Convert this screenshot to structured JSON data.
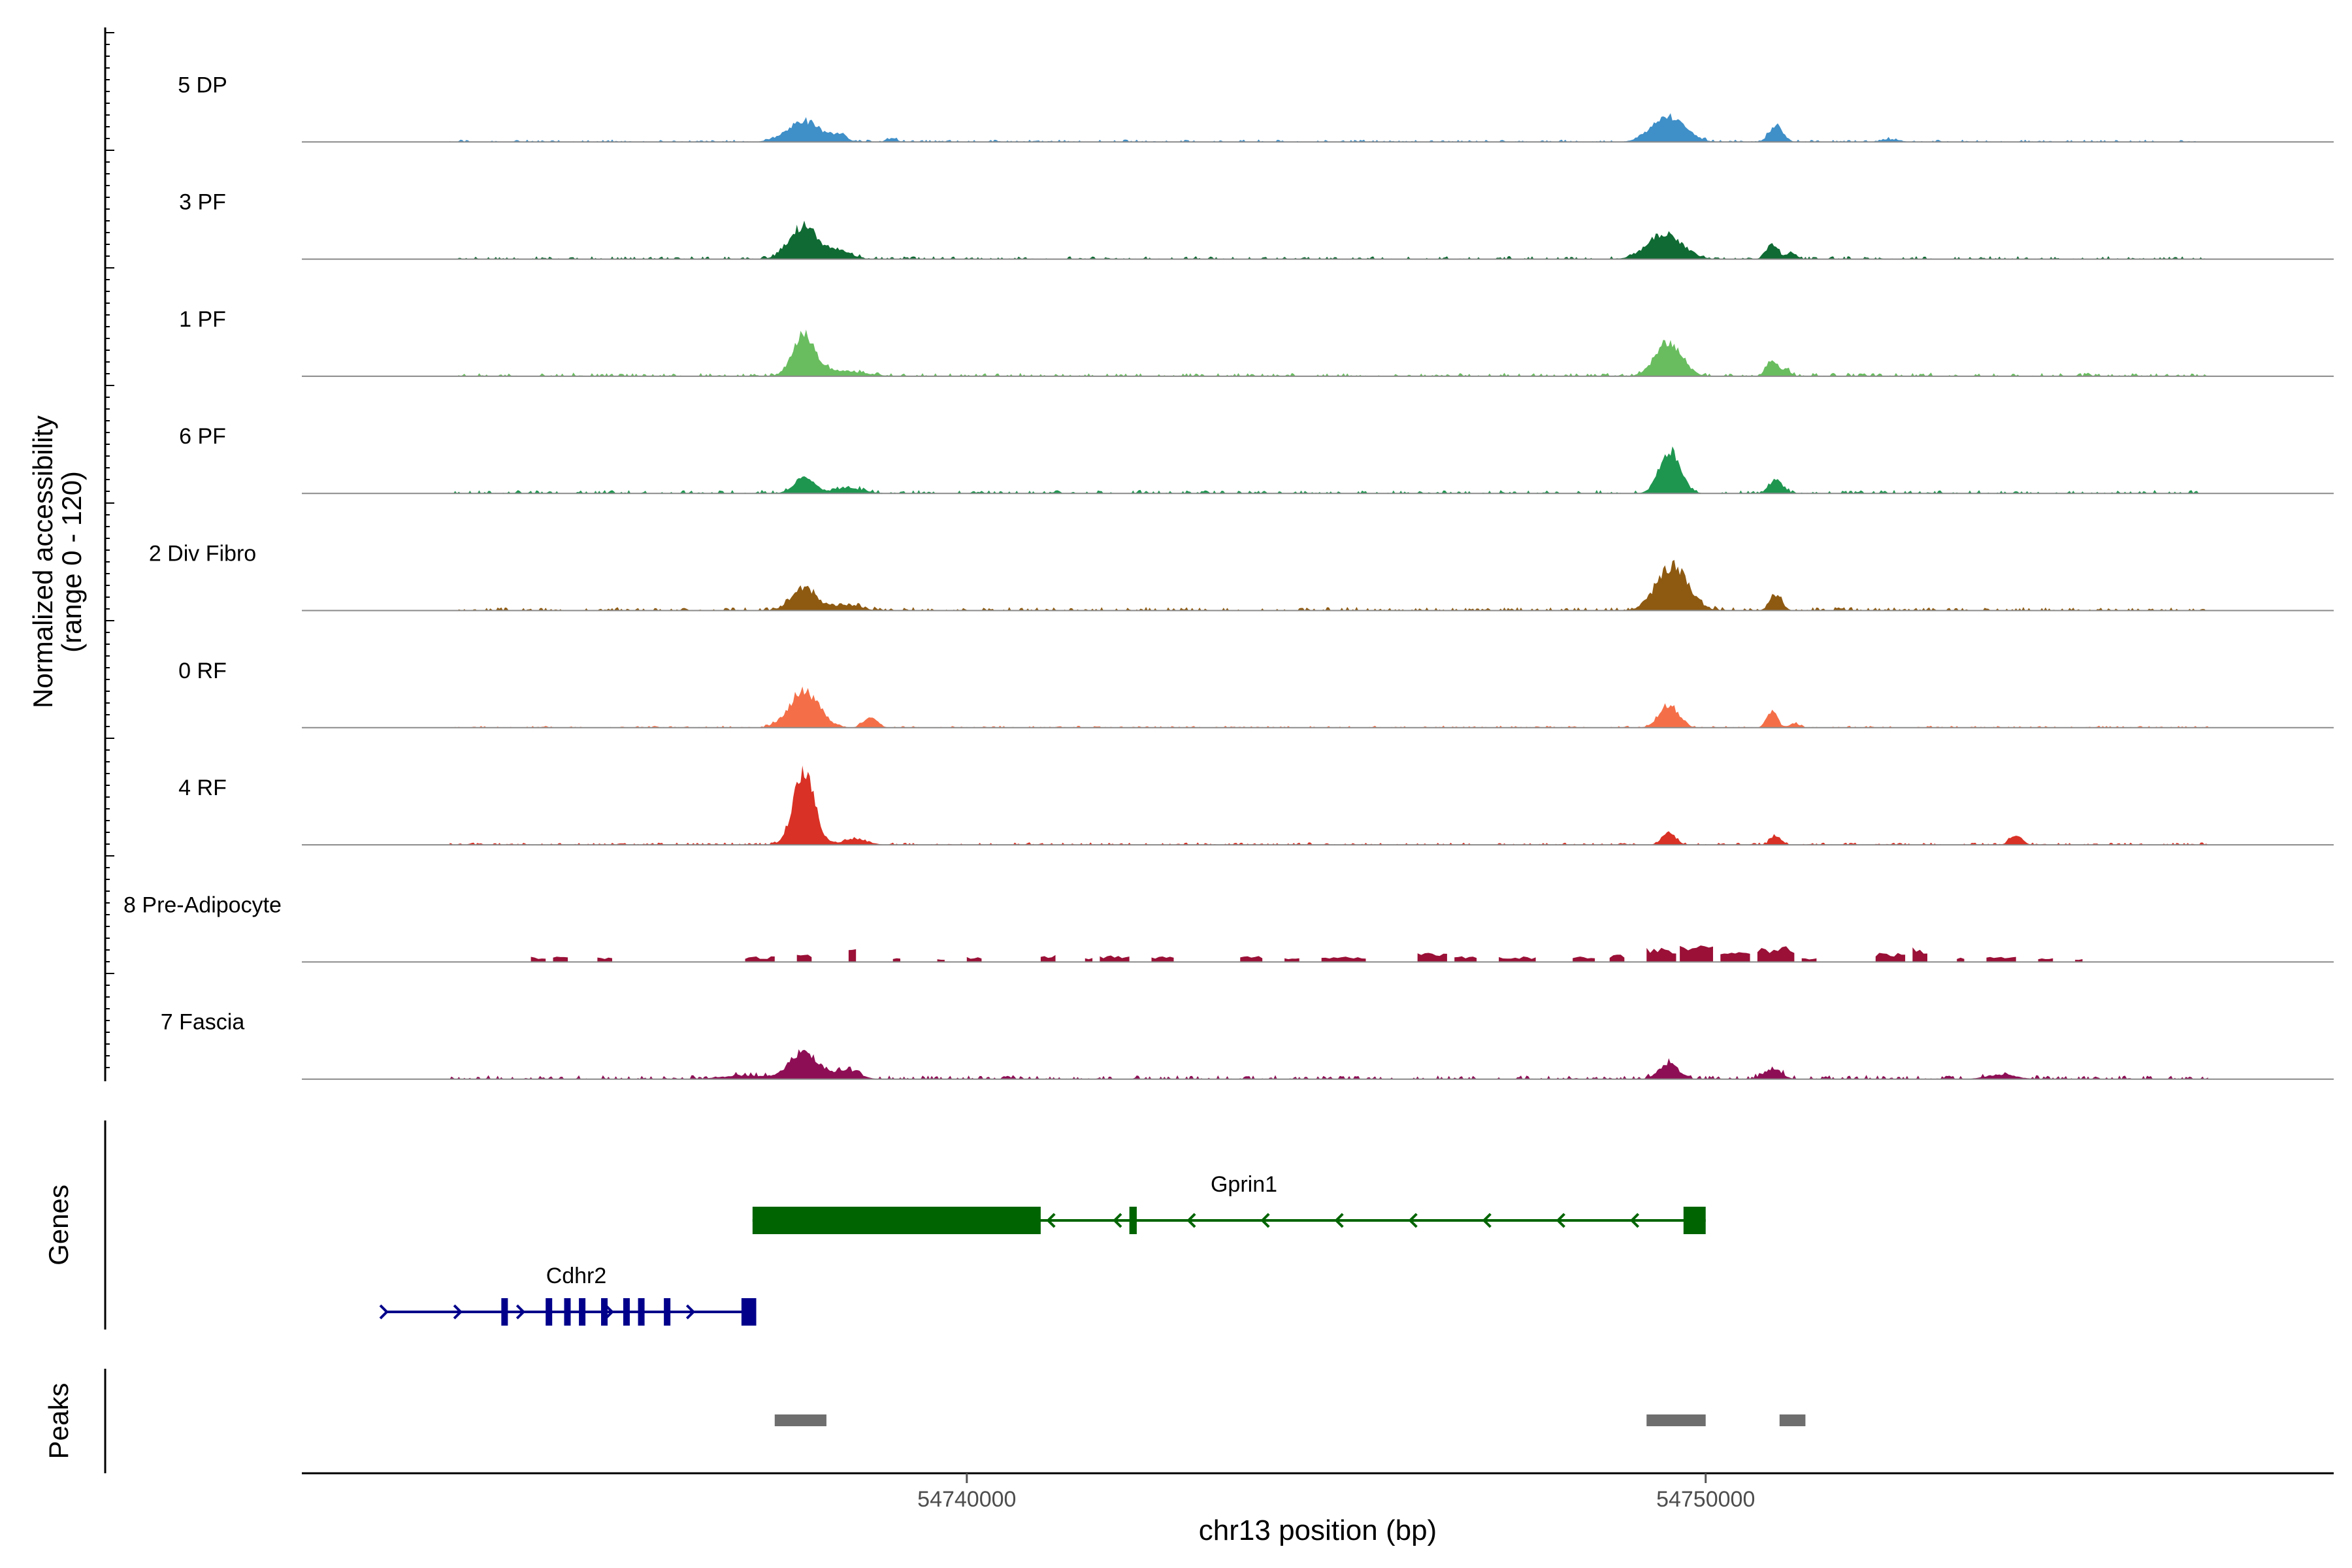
{
  "chart_data": {
    "type": "area",
    "chromosome": "chr13",
    "xlabel": "chr13 position (bp)",
    "ylabel_line1": "Normalized accessibility",
    "ylabel_line2": "(range 0 - 120)",
    "y_range": [
      0,
      120
    ],
    "x_range": [
      54731000,
      54758500
    ],
    "x_ticks": [
      {
        "value": 54740000,
        "label": "54740000"
      },
      {
        "value": 54750000,
        "label": "54750000"
      }
    ],
    "series": [
      {
        "name": "5 DP",
        "color": "#3F8FC8",
        "noise_seed": 5,
        "noise_level": 2.5,
        "peaks": [
          [
            54737800,
            22,
            230
          ],
          [
            54738300,
            7,
            80
          ],
          [
            54739000,
            4,
            60
          ],
          [
            54749500,
            28,
            220
          ],
          [
            54750950,
            17,
            90
          ],
          [
            54752500,
            3,
            120
          ]
        ]
      },
      {
        "name": "3 PF",
        "color": "#0F6B33",
        "noise_seed": 3,
        "noise_level": 3.0,
        "peaks": [
          [
            54737800,
            36,
            190
          ],
          [
            54738300,
            8,
            150
          ],
          [
            54749450,
            28,
            230
          ],
          [
            54750900,
            16,
            80
          ],
          [
            54751150,
            7,
            60
          ]
        ]
      },
      {
        "name": "1 PF",
        "color": "#69BD5F",
        "noise_seed": 1,
        "noise_level": 3.5,
        "peaks": [
          [
            54737800,
            42,
            150
          ],
          [
            54738300,
            6,
            300
          ],
          [
            54749500,
            36,
            180
          ],
          [
            54750900,
            16,
            80
          ],
          [
            54751100,
            6,
            60
          ]
        ]
      },
      {
        "name": "6 PF",
        "color": "#1F9650",
        "noise_seed": 6,
        "noise_level": 3.5,
        "peaks": [
          [
            54737800,
            17,
            140
          ],
          [
            54738400,
            6,
            200
          ],
          [
            54749520,
            46,
            140
          ],
          [
            54750950,
            15,
            90
          ]
        ]
      },
      {
        "name": "2 Div Fibro",
        "color": "#8E5A12",
        "noise_seed": 2,
        "noise_level": 3.5,
        "peaks": [
          [
            54737800,
            25,
            170
          ],
          [
            54738400,
            6,
            160
          ],
          [
            54749550,
            48,
            210
          ],
          [
            54750950,
            17,
            80
          ]
        ]
      },
      {
        "name": "0 RF",
        "color": "#F46F48",
        "noise_seed": 7,
        "noise_level": 2.0,
        "peaks": [
          [
            54737800,
            40,
            200
          ],
          [
            54738700,
            11,
            90
          ],
          [
            54749500,
            24,
            130
          ],
          [
            54750900,
            18,
            70
          ],
          [
            54751200,
            5,
            60
          ]
        ]
      },
      {
        "name": "4 RF",
        "color": "#D93125",
        "noise_seed": 4,
        "noise_level": 2.5,
        "peaks": [
          [
            54737800,
            80,
            140
          ],
          [
            54738500,
            6,
            160
          ],
          [
            54749500,
            14,
            90
          ],
          [
            54750950,
            10,
            70
          ],
          [
            54754200,
            11,
            80
          ]
        ]
      },
      {
        "name": "8 Pre-Adipocyte",
        "color": "#9A1037",
        "noise_seed": 8,
        "noise_level": 0,
        "blocks": [
          [
            54734100,
            54734300,
            6
          ],
          [
            54734400,
            54734600,
            6
          ],
          [
            54735000,
            54735200,
            5
          ],
          [
            54737000,
            54737400,
            6
          ],
          [
            54737700,
            54737900,
            8
          ],
          [
            54738400,
            54738500,
            14
          ],
          [
            54739000,
            54739100,
            5
          ],
          [
            54739600,
            54739700,
            4
          ],
          [
            54740000,
            54740200,
            6
          ],
          [
            54741000,
            54741200,
            8
          ],
          [
            54741600,
            54741700,
            5
          ],
          [
            54741800,
            54742200,
            7
          ],
          [
            54742500,
            54742800,
            6
          ],
          [
            54743700,
            54744000,
            7
          ],
          [
            54744300,
            54744500,
            5
          ],
          [
            54744800,
            54745400,
            6
          ],
          [
            54746100,
            54746500,
            11
          ],
          [
            54746600,
            54746900,
            7
          ],
          [
            54747200,
            54747700,
            6
          ],
          [
            54748200,
            54748500,
            6
          ],
          [
            54748700,
            54748900,
            8
          ],
          [
            54749200,
            54749600,
            16
          ],
          [
            54749650,
            54750100,
            18
          ],
          [
            54750200,
            54750600,
            11
          ],
          [
            54750700,
            54751200,
            17
          ],
          [
            54751300,
            54751500,
            5
          ],
          [
            54752300,
            54752700,
            10
          ],
          [
            54752800,
            54753000,
            16
          ],
          [
            54753400,
            54753500,
            5
          ],
          [
            54753800,
            54754200,
            6
          ],
          [
            54754500,
            54754700,
            4
          ],
          [
            54755000,
            54755100,
            4
          ]
        ]
      },
      {
        "name": "7 Fascia",
        "color": "#8E0E55",
        "noise_seed": 9,
        "noise_level": 4.0,
        "peaks": [
          [
            54737800,
            28,
            200
          ],
          [
            54738400,
            9,
            150
          ],
          [
            54737000,
            4,
            300
          ],
          [
            54749500,
            17,
            130
          ],
          [
            54750900,
            11,
            120
          ],
          [
            54754000,
            5,
            200
          ]
        ]
      }
    ],
    "genes": [
      {
        "name": "Cdhr2",
        "color": "#00008B",
        "strand": "+",
        "start": 54732150,
        "end": 54737150,
        "exons": [
          [
            54733700,
            54733780
          ],
          [
            54734300,
            54734380
          ],
          [
            54734550,
            54734630
          ],
          [
            54734750,
            54734830
          ],
          [
            54735050,
            54735130
          ],
          [
            54735350,
            54735430
          ],
          [
            54735550,
            54735630
          ],
          [
            54735900,
            54735960
          ],
          [
            54736950,
            54737150
          ]
        ],
        "arrows": [
          54732150,
          54733150,
          54734000,
          54735200,
          54736300
        ]
      },
      {
        "name": "Gprin1",
        "color": "#006400",
        "strand": "-",
        "start": 54737100,
        "end": 54750000,
        "exons": [
          [
            54737100,
            54741000
          ],
          [
            54742200,
            54742300
          ],
          [
            54749700,
            54750000
          ]
        ],
        "arrows": [
          54741100,
          54742000,
          54743000,
          54744000,
          54745000,
          54746000,
          54747000,
          54748000,
          54749000
        ]
      }
    ],
    "peaks_track": [
      {
        "start": 54737400,
        "end": 54738100
      },
      {
        "start": 54749200,
        "end": 54750000
      },
      {
        "start": 54751000,
        "end": 54751350
      }
    ],
    "track_titles": {
      "genes": "Genes",
      "peaks": "Peaks"
    },
    "peak_color": "#6E6E6E"
  }
}
